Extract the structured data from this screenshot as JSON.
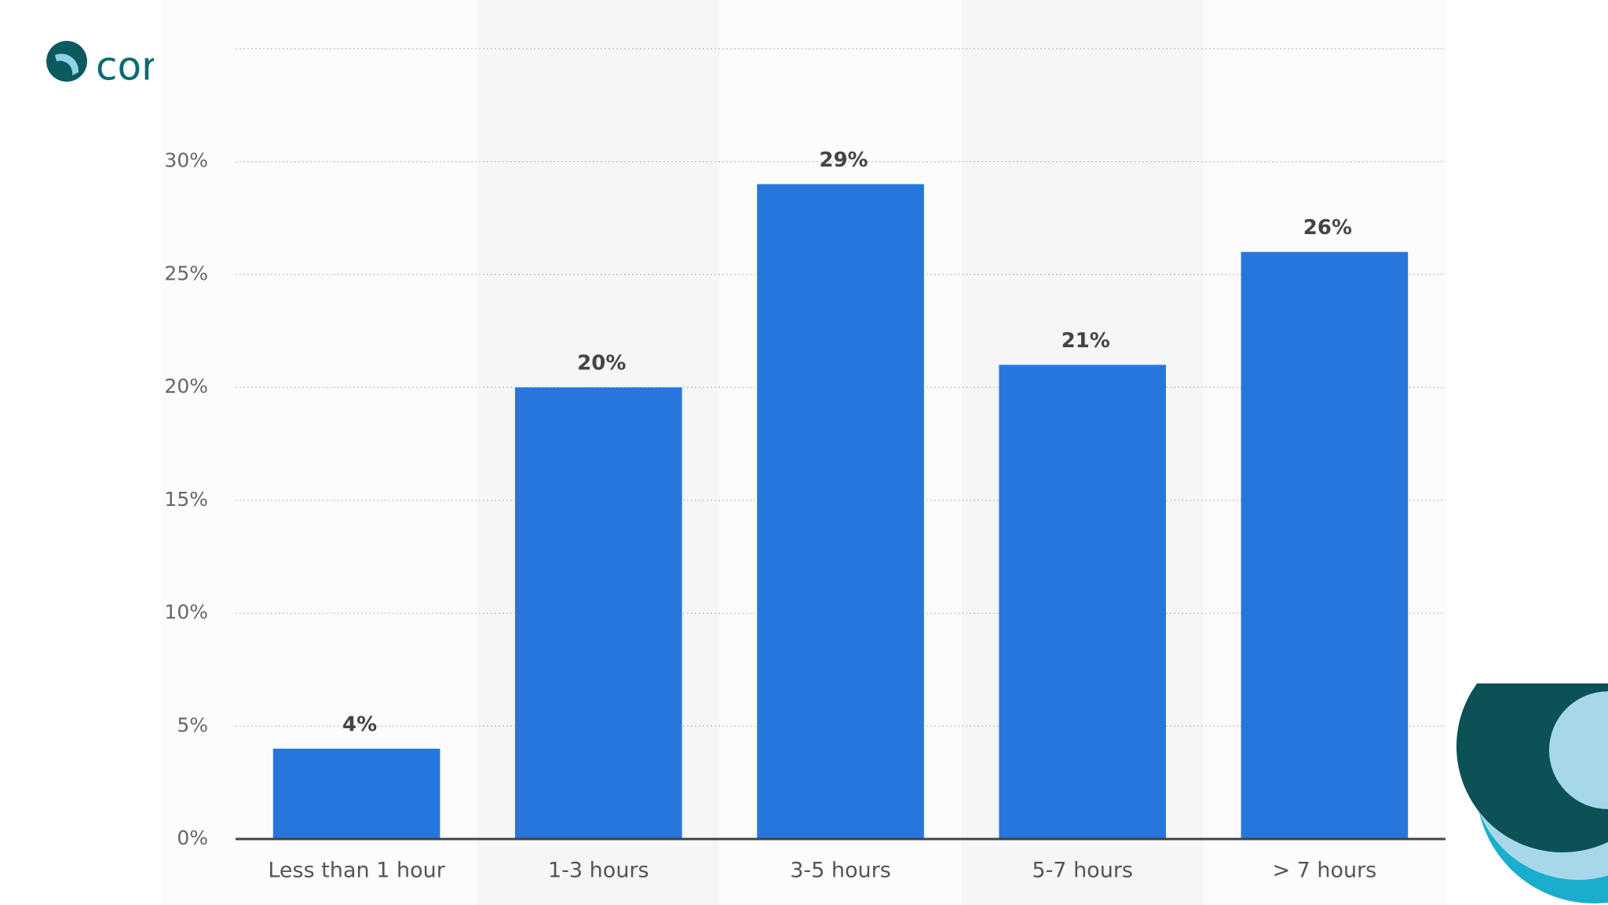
{
  "logo": "cor",
  "chart_data": {
    "type": "bar",
    "categories": [
      "Less than 1 hour",
      "1-3 hours",
      "3-5 hours",
      "5-7 hours",
      "> 7 hours"
    ],
    "values": [
      4,
      20,
      29,
      21,
      26
    ],
    "value_labels": [
      "4%",
      "20%",
      "29%",
      "21%",
      "26%"
    ],
    "color": "#2776dd",
    "ylim": [
      0,
      35
    ],
    "yticks": [
      {
        "value": 0,
        "label": "0%"
      },
      {
        "value": 5,
        "label": "5%"
      },
      {
        "value": 10,
        "label": "10%"
      },
      {
        "value": 15,
        "label": "15%"
      },
      {
        "value": 20,
        "label": "20%"
      },
      {
        "value": 25,
        "label": "25%"
      },
      {
        "value": 30,
        "label": "30%"
      }
    ],
    "grid": true
  }
}
